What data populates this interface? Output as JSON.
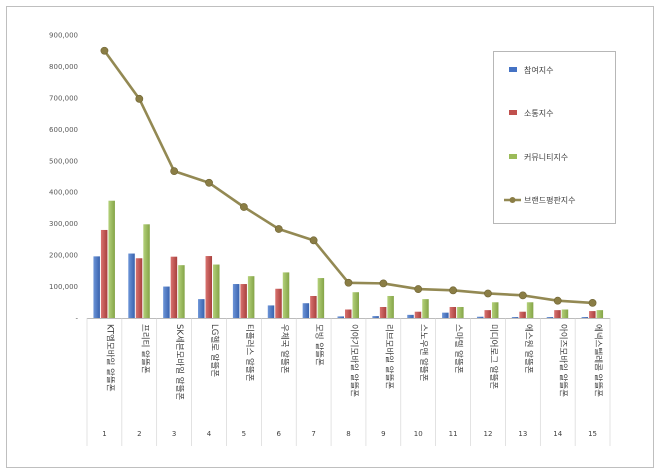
{
  "chart_data": {
    "type": "bar",
    "title": "",
    "xlabel": "",
    "ylabel": "",
    "ylim": [
      0,
      900000
    ],
    "yticks": [
      "-",
      "100,000",
      "200,000",
      "300,000",
      "400,000",
      "500,000",
      "600,000",
      "700,000",
      "800,000",
      "900,000"
    ],
    "grid": false,
    "legend_position": "right",
    "colors": {
      "participation": "#4472c4",
      "communication": "#c0504d",
      "community": "#9bbb59",
      "brand_index": "#938953",
      "axis": "#a6a6a6",
      "frame": "#bfbfbf"
    },
    "categories": [
      "KT엠모바일 알뜰폰",
      "프리티 알뜰폰",
      "SK세븐모바일 알뜰폰",
      "LG헬로 알뜰폰",
      "티플러스 알뜰폰",
      "우체국 알뜰폰",
      "모빙 알뜰폰",
      "이야기모바일 알뜰폰",
      "리브모바일 알뜰폰",
      "스노우맨 알뜰폰",
      "스마텔 알뜰폰",
      "미디어로그 알뜰폰",
      "에스원 알뜰폰",
      "아이즈모바일 알뜰폰",
      "에넥스텔레콤 알뜰폰"
    ],
    "ranks": [
      "1",
      "2",
      "3",
      "4",
      "5",
      "6",
      "7",
      "8",
      "9",
      "10",
      "11",
      "12",
      "13",
      "14",
      "15"
    ],
    "series": [
      {
        "name": "참여지수",
        "type": "bar",
        "values": [
          196000,
          205000,
          100000,
          60000,
          108000,
          40000,
          47000,
          5000,
          6000,
          10000,
          17000,
          4000,
          3000,
          3000,
          3000
        ]
      },
      {
        "name": "소통지수",
        "type": "bar",
        "values": [
          280000,
          190000,
          195000,
          197000,
          108000,
          93000,
          70000,
          27000,
          35000,
          20000,
          35000,
          25000,
          20000,
          25000,
          22000
        ]
      },
      {
        "name": "커뮤니티지수",
        "type": "bar",
        "values": [
          373000,
          298000,
          168000,
          170000,
          133000,
          145000,
          127000,
          82000,
          70000,
          60000,
          35000,
          50000,
          50000,
          27000,
          25000
        ]
      },
      {
        "name": "브랜드평판지수",
        "type": "line",
        "values": [
          850000,
          697000,
          467000,
          430000,
          353000,
          283000,
          247000,
          112000,
          110000,
          92000,
          88000,
          78000,
          72000,
          55000,
          48000
        ]
      }
    ]
  }
}
